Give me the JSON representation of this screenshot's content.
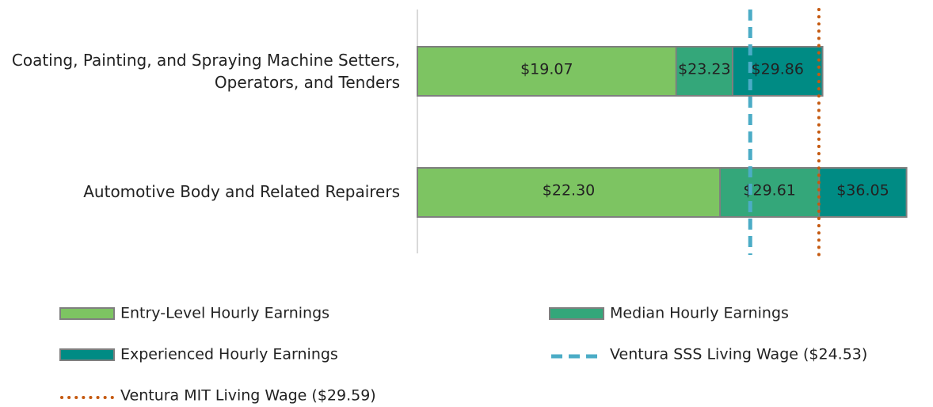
{
  "chart_data": {
    "type": "overlap-bar",
    "categories": [
      "Coating, Painting, and Spraying Machine Setters, Operators, and Tenders",
      "Automotive Body and Related Repairers"
    ],
    "series": [
      {
        "name": "Entry-Level Hourly Earnings",
        "color": "#7dc462",
        "values": [
          19.07,
          22.3
        ],
        "value_labels": [
          "$19.07",
          "$22.30"
        ]
      },
      {
        "name": "Median Hourly Earnings",
        "color": "#34a77a",
        "values": [
          23.23,
          29.61
        ],
        "value_labels": [
          "$23.23",
          "$29.61"
        ]
      },
      {
        "name": "Experienced Hourly Earnings",
        "color": "#008b84",
        "values": [
          29.86,
          36.05
        ],
        "value_labels": [
          "$29.86",
          "$36.05"
        ]
      }
    ],
    "reference_lines": [
      {
        "name": "Ventura SSS Living Wage ($24.53)",
        "value": 24.53,
        "color": "#4bacc6",
        "style": "dashed"
      },
      {
        "name": "Ventura MIT Living Wage ($29.59)",
        "value": 29.59,
        "color": "#c55a11",
        "style": "dotted"
      }
    ],
    "xlim": [
      0,
      38
    ]
  }
}
